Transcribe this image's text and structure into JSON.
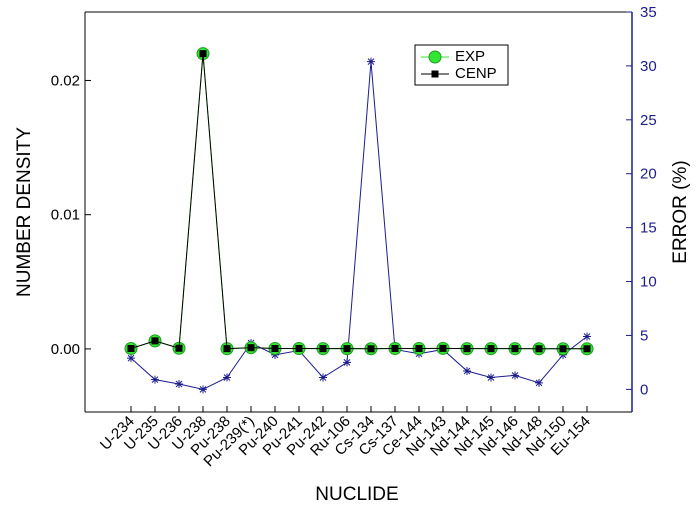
{
  "chart_data": {
    "type": "line",
    "x_label": "NUCLIDE",
    "y_label": "NUMBER DENSITY",
    "y2_label": "ERROR (%)",
    "categories": [
      "U-234",
      "U-235",
      "U-236",
      "U-238",
      "Pu-238",
      "Pu-239(*)",
      "Pu-240",
      "Pu-241",
      "Pu-242",
      "Ru-106",
      "Cs-134",
      "Cs-137",
      "Ce-144",
      "Nd-143",
      "Nd-144",
      "Nd-145",
      "Nd-146",
      "Nd-148",
      "Nd-150",
      "Eu-154"
    ],
    "ylim": [
      -0.0047,
      0.0251
    ],
    "yticks": [
      {
        "value": 0,
        "label": "0.00"
      },
      0.01,
      0.02
    ],
    "y2lim": [
      -2.1,
      35
    ],
    "y2ticks": [
      0,
      5,
      10,
      15,
      20,
      25,
      30,
      35
    ],
    "legend_position": "upper right",
    "series": [
      {
        "name": "EXP",
        "color": "#33e633",
        "marker": "circle",
        "values": [
          3e-05,
          0.0006,
          5e-05,
          0.022,
          2e-05,
          9e-05,
          3e-05,
          3e-05,
          2e-05,
          2e-05,
          1e-05,
          3e-05,
          3e-05,
          4e-05,
          2e-05,
          2e-05,
          2e-05,
          1e-05,
          1e-05,
          1e-05
        ]
      },
      {
        "name": "CENP",
        "color": "#000000",
        "marker": "square",
        "values": [
          3e-05,
          0.0006,
          5e-05,
          0.022,
          2e-05,
          9e-05,
          3e-05,
          3e-05,
          2e-05,
          2e-05,
          1e-05,
          3e-05,
          3e-05,
          4e-05,
          2e-05,
          2e-05,
          2e-05,
          1e-05,
          1e-05,
          1e-05
        ]
      },
      {
        "color": "#1c1c8f",
        "marker": "star",
        "axis": "y2",
        "values": [
          2.9,
          0.9,
          0.5,
          0.0,
          1.1,
          4.3,
          3.2,
          3.6,
          1.1,
          2.5,
          30.4,
          3.7,
          3.3,
          3.7,
          1.7,
          1.1,
          1.3,
          0.6,
          3.2,
          4.9
        ]
      }
    ]
  }
}
